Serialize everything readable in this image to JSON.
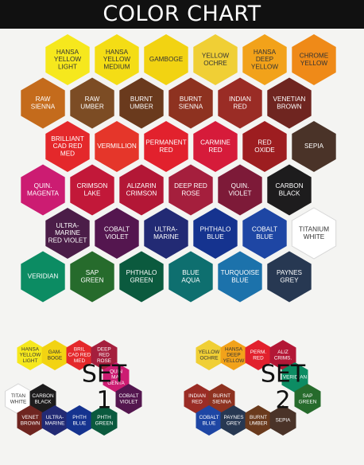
{
  "title": "COLOR CHART",
  "chart": [
    {
      "label": "HANSA\nYELLOW\nLIGHT",
      "color": "#f6e81d",
      "text": "#333333"
    },
    {
      "label": "HANSA\nYELLOW\nMEDIUM",
      "color": "#f4dd15",
      "text": "#333333"
    },
    {
      "label": "GAMBOGE",
      "color": "#f2d312",
      "text": "#333333"
    },
    {
      "label": "YELLOW\nOCHRE",
      "color": "#f0cf35",
      "text": "#333333"
    },
    {
      "label": "HANSA\nDEEP\nYELLOW",
      "color": "#f2a21a",
      "text": "#333333"
    },
    {
      "label": "CHROME\nYELLOW",
      "color": "#ef8a18",
      "text": "#333333"
    },
    {
      "label": "RAW\nSIENNA",
      "color": "#c46b1c",
      "text": "#ffffff"
    },
    {
      "label": "RAW\nUMBER",
      "color": "#7c4c24",
      "text": "#ffffff"
    },
    {
      "label": "BURNT\nUMBER",
      "color": "#6a3a1d",
      "text": "#ffffff"
    },
    {
      "label": "BURNT\nSIENNA",
      "color": "#8e3220",
      "text": "#ffffff"
    },
    {
      "label": "INDIAN\nRED",
      "color": "#9a2c25",
      "text": "#ffffff"
    },
    {
      "label": "VENETIAN\nBROWN",
      "color": "#6f2520",
      "text": "#ffffff"
    },
    {
      "label": "BRILLIANT\nCAD RED\nMED",
      "color": "#e4282b",
      "text": "#ffffff"
    },
    {
      "label": "VERMILLION",
      "color": "#e5362a",
      "text": "#ffffff"
    },
    {
      "label": "PERMANENT\nRED",
      "color": "#e2212d",
      "text": "#ffffff"
    },
    {
      "label": "CARMINE\nRED",
      "color": "#d61b3a",
      "text": "#ffffff"
    },
    {
      "label": "RED\nOXIDE",
      "color": "#9d1d20",
      "text": "#ffffff"
    },
    {
      "label": "SEPIA",
      "color": "#4a3328",
      "text": "#ffffff"
    },
    {
      "label": "QUIN.\nMAGENTA",
      "color": "#cc1c72",
      "text": "#ffffff"
    },
    {
      "label": "CRIMSON\nLAKE",
      "color": "#c21839",
      "text": "#ffffff"
    },
    {
      "label": "ALIZARIN\nCRIMSON",
      "color": "#b31736",
      "text": "#ffffff"
    },
    {
      "label": "DEEP RED\nROSE",
      "color": "#a51f3d",
      "text": "#ffffff"
    },
    {
      "label": "QUIN.\nVIOLET",
      "color": "#7d1a38",
      "text": "#ffffff"
    },
    {
      "label": "CARBON\nBLACK",
      "color": "#1d1c1d",
      "text": "#ffffff"
    },
    {
      "label": "ULTRA-\nMARINE\nRED VIOLET",
      "color": "#4b1d48",
      "text": "#ffffff"
    },
    {
      "label": "COBALT\nVIOLET",
      "color": "#54164f",
      "text": "#ffffff"
    },
    {
      "label": "ULTRA-\nMARINE",
      "color": "#222a74",
      "text": "#ffffff"
    },
    {
      "label": "PHTHALO\nBLUE",
      "color": "#15338f",
      "text": "#ffffff"
    },
    {
      "label": "COBALT\nBLUE",
      "color": "#1e46a4",
      "text": "#ffffff"
    },
    {
      "label": "TITANIUM\nWHITE",
      "color": "#ffffff",
      "text": "#333333"
    },
    {
      "label": "VERIDIAN",
      "color": "#0c8c63",
      "text": "#ffffff"
    },
    {
      "label": "SAP\nGREEN",
      "color": "#266b2c",
      "text": "#ffffff"
    },
    {
      "label": "PHTHALO\nGREEN",
      "color": "#0b5a3e",
      "text": "#ffffff"
    },
    {
      "label": "BLUE\nAQUA",
      "color": "#0e6f6f",
      "text": "#ffffff"
    },
    {
      "label": "TURQUOISE\nBLUE",
      "color": "#1c72ab",
      "text": "#ffffff"
    },
    {
      "label": "PAYNES\nGREY",
      "color": "#273852",
      "text": "#ffffff"
    }
  ],
  "sets": [
    {
      "name": "SET",
      "number": "1",
      "swatches": [
        {
          "label": "HANSA\nYELLOW\nLIGHT",
          "color": "#f6e81d",
          "text": "#333333"
        },
        {
          "label": "GAM-\nBOGE",
          "color": "#f2d312",
          "text": "#333333"
        },
        {
          "label": "BRIL\nCAD RED\nMED",
          "color": "#e4282b",
          "text": "#ffffff"
        },
        {
          "label": "DEEP\nRED\nROSE",
          "color": "#a51f3d",
          "text": "#ffffff"
        },
        {
          "label": "QUIN\nMA-\nGENTA",
          "color": "#cc1c72",
          "text": "#ffffff"
        },
        {
          "label": "COBALT\nVIOLET",
          "color": "#54164f",
          "text": "#ffffff"
        },
        {
          "label": "TITAN\nWHITE",
          "color": "#ffffff",
          "text": "#333333"
        },
        {
          "label": "CARBON\nBLACK",
          "color": "#1d1c1d",
          "text": "#ffffff"
        },
        {
          "label": "VENET\nBROWN",
          "color": "#6f2520",
          "text": "#ffffff"
        },
        {
          "label": "ULTRA-\nMARINE",
          "color": "#222a74",
          "text": "#ffffff"
        },
        {
          "label": "PHTH\nBLUE",
          "color": "#15338f",
          "text": "#ffffff"
        },
        {
          "label": "PHTH\nGREEN",
          "color": "#0b5a3e",
          "text": "#ffffff"
        }
      ]
    },
    {
      "name": "SET",
      "number": "2",
      "swatches": [
        {
          "label": "YELLOW\nOCHRE",
          "color": "#f0cf35",
          "text": "#333333"
        },
        {
          "label": "HANSA\nDEEP\nYELLOW",
          "color": "#f2a21a",
          "text": "#333333"
        },
        {
          "label": "PERM.\nRED",
          "color": "#e2212d",
          "text": "#ffffff"
        },
        {
          "label": "ALIZ\nCRIMS.",
          "color": "#b31736",
          "text": "#ffffff"
        },
        {
          "label": "VERIDIAN",
          "color": "#0c8c63",
          "text": "#ffffff"
        },
        {
          "label": "SAP\nGREEN",
          "color": "#266b2c",
          "text": "#ffffff"
        },
        {
          "label": "INDIAN\nRED",
          "color": "#9a2c25",
          "text": "#ffffff"
        },
        {
          "label": "BURNT\nSIENNA",
          "color": "#8e3220",
          "text": "#ffffff"
        },
        {
          "label": "COBALT\nBLUE",
          "color": "#1e46a4",
          "text": "#ffffff"
        },
        {
          "label": "PAYNES\nGREY",
          "color": "#273852",
          "text": "#ffffff"
        },
        {
          "label": "BURNT\nUMBER",
          "color": "#6a3a1d",
          "text": "#ffffff"
        },
        {
          "label": "SEPIA",
          "color": "#4a3328",
          "text": "#ffffff"
        }
      ]
    }
  ]
}
